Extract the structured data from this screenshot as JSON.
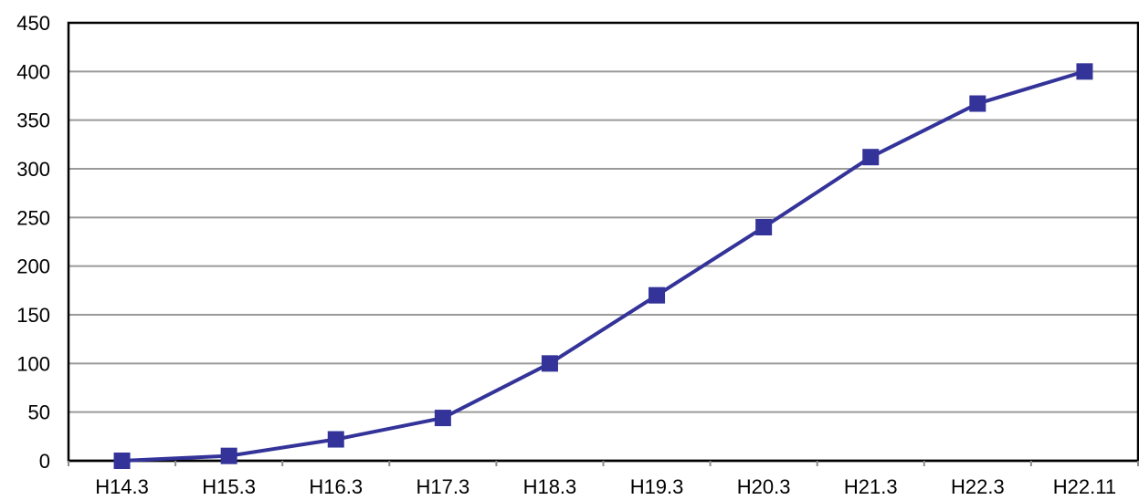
{
  "chart_data": {
    "type": "line",
    "title": "",
    "xlabel": "",
    "ylabel": "",
    "categories": [
      "H14.3",
      "H15.3",
      "H16.3",
      "H17.3",
      "H18.3",
      "H19.3",
      "H20.3",
      "H21.3",
      "H22.3",
      "H22.11"
    ],
    "series": [
      {
        "values": [
          0,
          5,
          22,
          44,
          100,
          170,
          240,
          312,
          367,
          400
        ],
        "color": "#333399",
        "marker": "square"
      }
    ],
    "ylim": [
      0,
      450
    ],
    "yticks": [
      0,
      50,
      100,
      150,
      200,
      250,
      300,
      350,
      400,
      450
    ],
    "grid": true,
    "legend": "none"
  }
}
